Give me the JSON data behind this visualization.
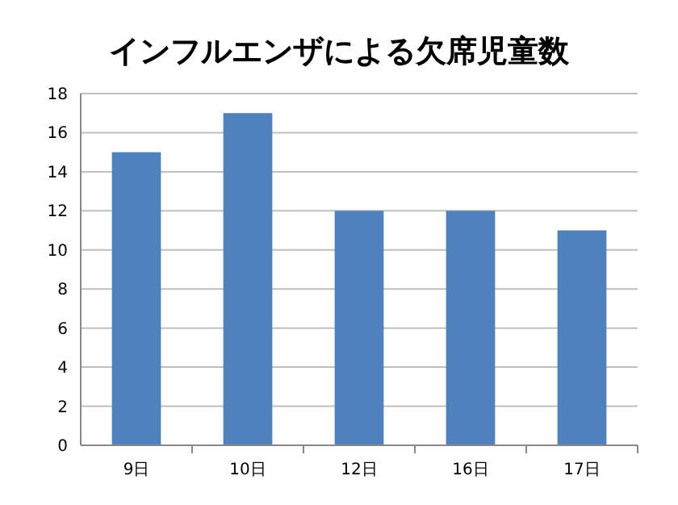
{
  "chart_data": {
    "type": "bar",
    "title": "インフルエンザによる欠席児童数",
    "categories": [
      "9日",
      "10日",
      "12日",
      "16日",
      "17日"
    ],
    "values": [
      15,
      17,
      12,
      12,
      11
    ],
    "color": "#4f81bd",
    "ylim": [
      0,
      18
    ],
    "yticks": [
      0,
      2,
      4,
      6,
      8,
      10,
      12,
      14,
      16,
      18
    ],
    "grid": "y"
  }
}
